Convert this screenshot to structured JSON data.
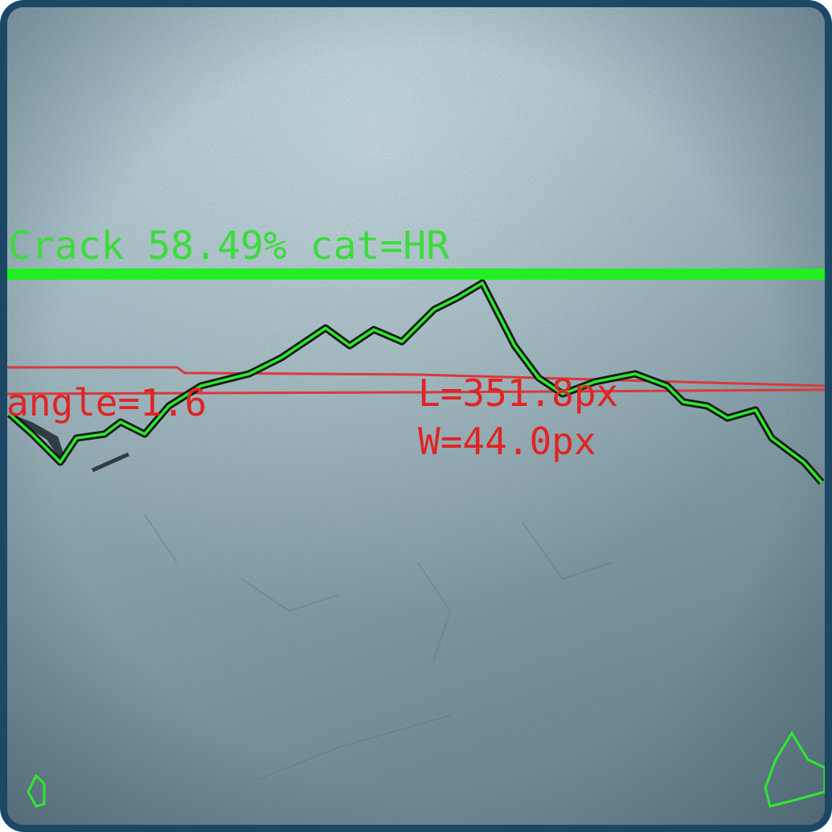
{
  "annotations": {
    "detection": "Crack 58.49% cat=HR",
    "angle": "angle=1.6",
    "length": "L=351.8px",
    "width": "W=44.0px"
  }
}
